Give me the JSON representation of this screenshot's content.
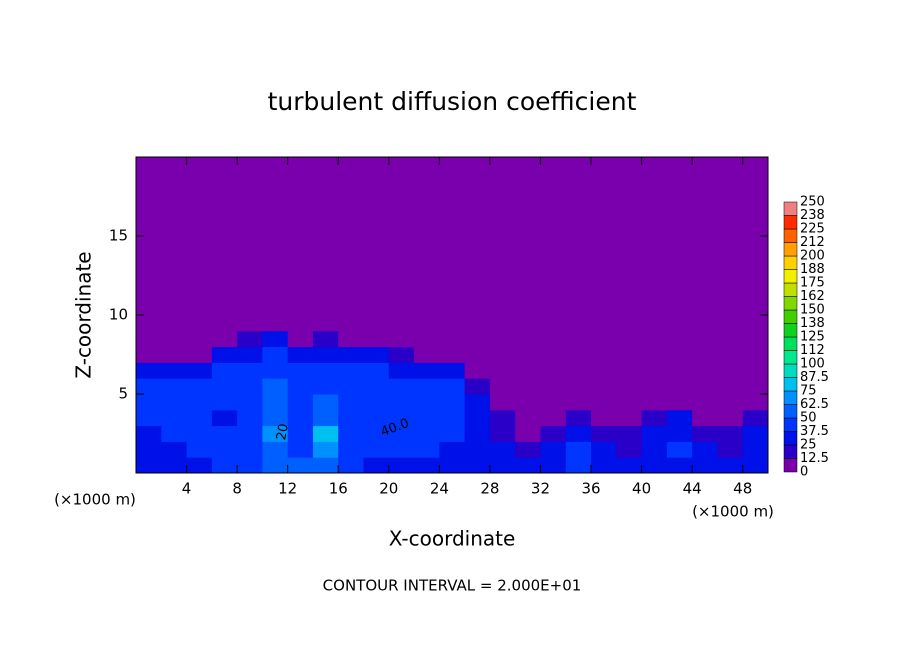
{
  "chart_data": {
    "type": "heatmap",
    "title": "turbulent diffusion coefficient",
    "x_label": "X-coordinate",
    "y_label": "Z-coordinate",
    "x_unit": "(×1000 m)",
    "y_unit": "(×1000 m)",
    "footer": "CONTOUR INTERVAL = 2.000E+01",
    "annotations": [
      "20",
      "40.0"
    ],
    "xlim": [
      0,
      50
    ],
    "ylim": [
      0,
      20
    ],
    "xticks": [
      4,
      8,
      12,
      16,
      20,
      24,
      28,
      32,
      36,
      40,
      44,
      48
    ],
    "yticks": [
      5,
      10,
      15
    ],
    "x_edges": [
      0,
      2,
      4,
      6,
      8,
      10,
      12,
      14,
      16,
      18,
      20,
      22,
      24,
      26,
      28,
      30,
      32,
      34,
      36,
      38,
      40,
      42,
      44,
      46,
      48,
      50
    ],
    "y_edges": [
      0,
      1,
      2,
      3,
      4,
      5,
      6,
      7,
      8,
      9,
      20
    ],
    "z": [
      [
        30,
        35,
        35,
        40,
        45,
        55,
        50,
        55,
        40,
        35,
        35,
        35,
        35,
        35,
        30,
        30,
        35,
        40,
        30,
        30,
        35,
        30,
        30,
        30,
        35
      ],
      [
        25,
        35,
        40,
        40,
        45,
        60,
        45,
        70,
        45,
        40,
        45,
        40,
        35,
        30,
        25,
        15,
        30,
        40,
        30,
        20,
        35,
        40,
        25,
        20,
        30
      ],
      [
        35,
        40,
        40,
        40,
        40,
        65,
        40,
        75,
        40,
        40,
        45,
        40,
        40,
        35,
        20,
        10,
        15,
        30,
        20,
        15,
        30,
        35,
        20,
        15,
        25
      ],
      [
        40,
        40,
        40,
        35,
        40,
        60,
        40,
        60,
        40,
        40,
        40,
        40,
        40,
        35,
        15,
        10,
        10,
        15,
        10,
        10,
        15,
        25,
        10,
        10,
        20
      ],
      [
        40,
        40,
        40,
        40,
        40,
        55,
        40,
        50,
        40,
        40,
        40,
        40,
        40,
        30,
        10,
        10,
        10,
        10,
        10,
        10,
        10,
        10,
        10,
        10,
        10
      ],
      [
        40,
        40,
        40,
        40,
        40,
        50,
        40,
        45,
        40,
        40,
        40,
        40,
        40,
        20,
        10,
        10,
        10,
        10,
        10,
        10,
        10,
        10,
        10,
        10,
        10
      ],
      [
        35,
        35,
        30,
        40,
        40,
        45,
        40,
        40,
        40,
        40,
        35,
        35,
        35,
        10,
        10,
        10,
        10,
        10,
        10,
        10,
        10,
        10,
        10,
        10,
        10
      ],
      [
        10,
        10,
        10,
        30,
        35,
        40,
        35,
        35,
        30,
        25,
        20,
        10,
        10,
        10,
        10,
        10,
        10,
        10,
        10,
        10,
        10,
        10,
        10,
        10,
        10
      ],
      [
        10,
        10,
        10,
        10,
        20,
        25,
        10,
        20,
        10,
        10,
        10,
        10,
        10,
        10,
        10,
        10,
        10,
        10,
        10,
        10,
        10,
        10,
        10,
        10,
        10
      ],
      [
        5,
        5,
        5,
        5,
        5,
        5,
        5,
        5,
        5,
        5,
        5,
        5,
        5,
        5,
        5,
        5,
        5,
        5,
        5,
        5,
        5,
        5,
        5,
        5,
        5
      ]
    ],
    "levels": [
      0,
      12.5,
      25,
      37.5,
      50,
      62.5,
      75,
      87.5,
      100,
      112,
      125,
      138,
      150,
      162,
      175,
      188,
      200,
      212,
      225,
      238,
      250
    ],
    "colors": [
      "#7a00ad",
      "#2a00c8",
      "#0010e8",
      "#0035ff",
      "#0060ff",
      "#0090ff",
      "#00c0f0",
      "#00dcc0",
      "#00e890",
      "#00e060",
      "#10d020",
      "#40d000",
      "#80d800",
      "#c0e000",
      "#f0f000",
      "#ffd000",
      "#ffa000",
      "#ff6000",
      "#ff2a00",
      "#f08080"
    ]
  }
}
